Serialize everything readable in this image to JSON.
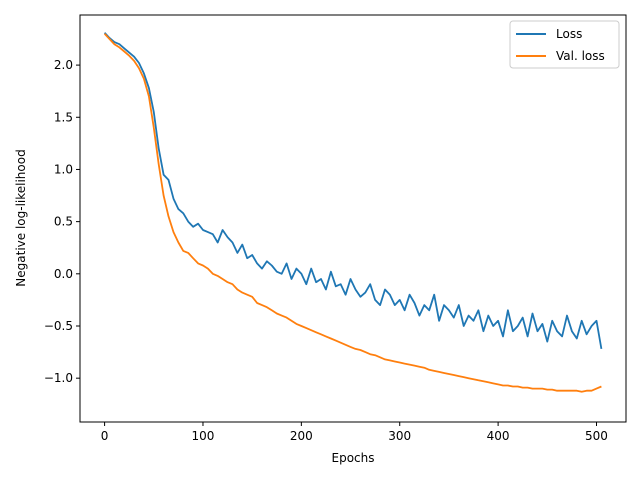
{
  "chart_data": {
    "type": "line",
    "title": "",
    "xlabel": "Epochs",
    "ylabel": "Negative log-likelihood",
    "xlim": [
      -25,
      530
    ],
    "ylim": [
      -1.42,
      2.48
    ],
    "xticks": [
      0,
      100,
      200,
      300,
      400,
      500
    ],
    "yticks": [
      -1.0,
      -0.5,
      0.0,
      0.5,
      1.0,
      1.5,
      2.0
    ],
    "xtick_labels": [
      "0",
      "100",
      "200",
      "300",
      "400",
      "500"
    ],
    "ytick_labels": [
      "−1.0",
      "−0.5",
      "0.0",
      "0.5",
      "1.0",
      "1.5",
      "2.0"
    ],
    "grid": false,
    "legend_position": "top-right",
    "series": [
      {
        "name": "Loss",
        "color": "#1f77b4",
        "x": [
          0,
          5,
          10,
          15,
          20,
          25,
          30,
          35,
          40,
          45,
          50,
          55,
          60,
          65,
          70,
          75,
          80,
          85,
          90,
          95,
          100,
          105,
          110,
          115,
          120,
          125,
          130,
          135,
          140,
          145,
          150,
          155,
          160,
          165,
          170,
          175,
          180,
          185,
          190,
          195,
          200,
          205,
          210,
          215,
          220,
          225,
          230,
          235,
          240,
          245,
          250,
          255,
          260,
          265,
          270,
          275,
          280,
          285,
          290,
          295,
          300,
          305,
          310,
          315,
          320,
          325,
          330,
          335,
          340,
          345,
          350,
          355,
          360,
          365,
          370,
          375,
          380,
          385,
          390,
          395,
          400,
          405,
          410,
          415,
          420,
          425,
          430,
          435,
          440,
          445,
          450,
          455,
          460,
          465,
          470,
          475,
          480,
          485,
          490,
          495,
          500,
          505
        ],
        "y": [
          2.31,
          2.26,
          2.22,
          2.2,
          2.16,
          2.12,
          2.08,
          2.02,
          1.92,
          1.78,
          1.55,
          1.2,
          0.95,
          0.9,
          0.72,
          0.62,
          0.58,
          0.5,
          0.45,
          0.48,
          0.42,
          0.4,
          0.38,
          0.3,
          0.42,
          0.35,
          0.3,
          0.2,
          0.28,
          0.15,
          0.18,
          0.1,
          0.05,
          0.12,
          0.08,
          0.02,
          0.0,
          0.1,
          -0.05,
          0.05,
          0.0,
          -0.1,
          0.05,
          -0.08,
          -0.05,
          -0.15,
          0.02,
          -0.12,
          -0.1,
          -0.2,
          -0.05,
          -0.15,
          -0.22,
          -0.18,
          -0.1,
          -0.25,
          -0.3,
          -0.15,
          -0.2,
          -0.3,
          -0.25,
          -0.35,
          -0.2,
          -0.28,
          -0.4,
          -0.3,
          -0.35,
          -0.2,
          -0.45,
          -0.3,
          -0.35,
          -0.42,
          -0.3,
          -0.5,
          -0.4,
          -0.45,
          -0.35,
          -0.55,
          -0.4,
          -0.5,
          -0.45,
          -0.6,
          -0.35,
          -0.55,
          -0.5,
          -0.42,
          -0.6,
          -0.38,
          -0.55,
          -0.48,
          -0.65,
          -0.45,
          -0.55,
          -0.6,
          -0.4,
          -0.55,
          -0.62,
          -0.45,
          -0.58,
          -0.5,
          -0.45,
          -0.72
        ]
      },
      {
        "name": "Val. loss",
        "color": "#ff7f0e",
        "x": [
          0,
          5,
          10,
          15,
          20,
          25,
          30,
          35,
          40,
          45,
          50,
          55,
          60,
          65,
          70,
          75,
          80,
          85,
          90,
          95,
          100,
          105,
          110,
          115,
          120,
          125,
          130,
          135,
          140,
          145,
          150,
          155,
          160,
          165,
          170,
          175,
          180,
          185,
          190,
          195,
          200,
          205,
          210,
          215,
          220,
          225,
          230,
          235,
          240,
          245,
          250,
          255,
          260,
          265,
          270,
          275,
          280,
          285,
          290,
          295,
          300,
          305,
          310,
          315,
          320,
          325,
          330,
          335,
          340,
          345,
          350,
          355,
          360,
          365,
          370,
          375,
          380,
          385,
          390,
          395,
          400,
          405,
          410,
          415,
          420,
          425,
          430,
          435,
          440,
          445,
          450,
          455,
          460,
          465,
          470,
          475,
          480,
          485,
          490,
          495,
          500,
          505
        ],
        "y": [
          2.3,
          2.25,
          2.2,
          2.17,
          2.13,
          2.09,
          2.04,
          1.97,
          1.87,
          1.7,
          1.4,
          1.05,
          0.75,
          0.55,
          0.4,
          0.3,
          0.22,
          0.2,
          0.15,
          0.1,
          0.08,
          0.05,
          0.0,
          -0.02,
          -0.05,
          -0.08,
          -0.1,
          -0.15,
          -0.18,
          -0.2,
          -0.22,
          -0.28,
          -0.3,
          -0.32,
          -0.35,
          -0.38,
          -0.4,
          -0.42,
          -0.45,
          -0.48,
          -0.5,
          -0.52,
          -0.54,
          -0.56,
          -0.58,
          -0.6,
          -0.62,
          -0.64,
          -0.66,
          -0.68,
          -0.7,
          -0.72,
          -0.73,
          -0.75,
          -0.77,
          -0.78,
          -0.8,
          -0.82,
          -0.83,
          -0.84,
          -0.85,
          -0.86,
          -0.87,
          -0.88,
          -0.89,
          -0.9,
          -0.92,
          -0.93,
          -0.94,
          -0.95,
          -0.96,
          -0.97,
          -0.98,
          -0.99,
          -1.0,
          -1.01,
          -1.02,
          -1.03,
          -1.04,
          -1.05,
          -1.06,
          -1.07,
          -1.07,
          -1.08,
          -1.08,
          -1.09,
          -1.09,
          -1.1,
          -1.1,
          -1.1,
          -1.11,
          -1.11,
          -1.12,
          -1.12,
          -1.12,
          -1.12,
          -1.12,
          -1.13,
          -1.12,
          -1.12,
          -1.1,
          -1.08
        ]
      }
    ]
  }
}
